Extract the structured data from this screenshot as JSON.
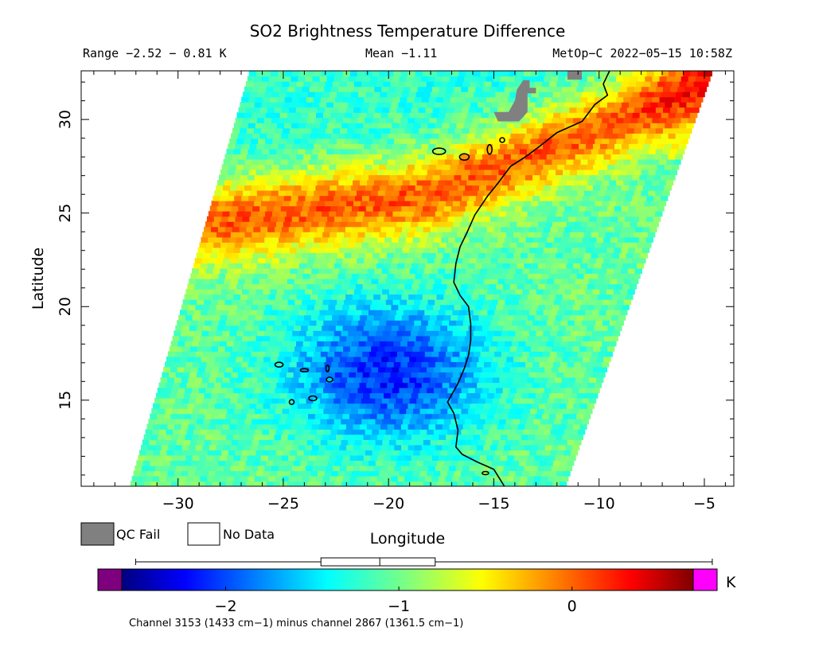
{
  "chart_data": {
    "type": "heatmap",
    "title": "SO2 Brightness Temperature Difference",
    "range_text": "Range −2.52 − 0.81 K",
    "mean_text": "Mean −1.11",
    "satellite_text": "MetOp−C 2022−05−15 10:58Z",
    "xlabel": "Longitude",
    "ylabel": "Latitude",
    "xlim": [
      -34.6,
      -3.6
    ],
    "ylim": [
      10.4,
      32.6
    ],
    "xticks": [
      -30,
      -25,
      -20,
      -15,
      -10,
      -5
    ],
    "xtick_labels": [
      "−30",
      "−25",
      "−20",
      "−15",
      "−10",
      "−5"
    ],
    "yticks": [
      15,
      20,
      25,
      30
    ],
    "ytick_labels": [
      "15",
      "20",
      "25",
      "30"
    ],
    "swath_corners": {
      "bottom_left": [
        -32.3,
        10.4
      ],
      "top_left": [
        -26.6,
        32.6
      ],
      "top_right": [
        -4.6,
        32.6
      ],
      "bottom_right": [
        -11.6,
        10.4
      ]
    },
    "features": {
      "hot_band": {
        "description_points": [
          [
            -28.5,
            24.5
          ],
          [
            -18,
            26
          ],
          [
            -10,
            29.5
          ],
          [
            -5,
            32
          ]
        ]
      },
      "cold_center": [
        -20,
        16.5
      ]
    },
    "colorbar": {
      "min": -2.6,
      "max": 0.7,
      "ticks": [
        -2,
        -1,
        0
      ],
      "tick_labels": [
        "−2",
        "−1",
        "0"
      ],
      "unit": "K",
      "under_color": "#7f007f",
      "over_color": "#ff00ff"
    },
    "boxplot": {
      "whisker_low": -2.52,
      "q1": -1.45,
      "median": -1.11,
      "q3": -0.79,
      "whisker_high": 0.81
    },
    "legend": [
      {
        "label": "QC Fail",
        "color": "#808080"
      },
      {
        "label": "No Data",
        "color": "#ffffff"
      }
    ],
    "footer": "Channel 3153 (1433 cm−1) minus channel 2867 (1361.5 cm−1)"
  }
}
